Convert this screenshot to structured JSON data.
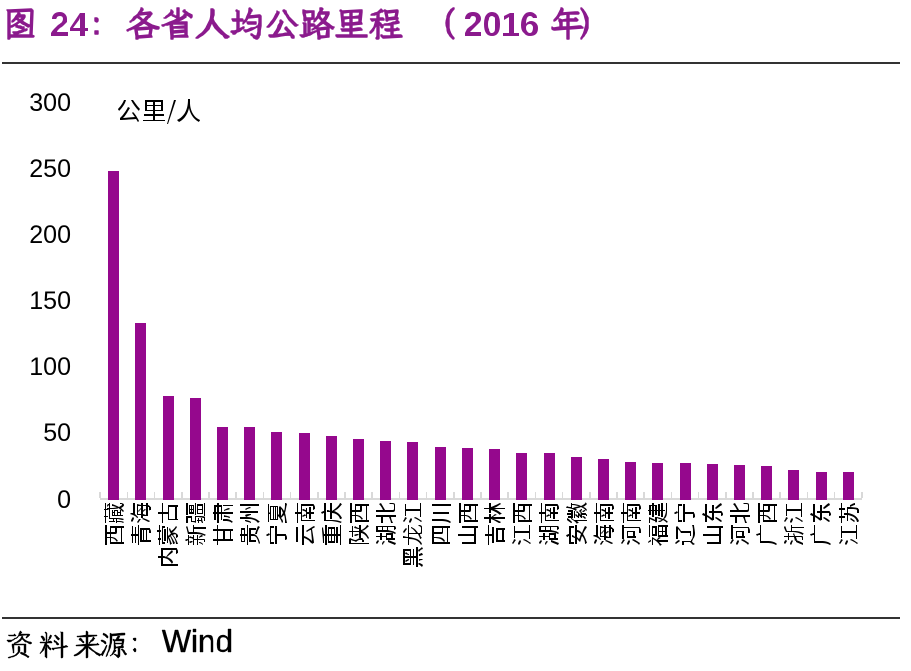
{
  "title": {
    "text": "图 24：各省人均公路里程（2016 年）",
    "figure_label": "图 24",
    "color": "#8B1A8D"
  },
  "chart_data": {
    "type": "bar",
    "title": "各省人均公路里程（2016 年）",
    "unit_label": "公里/人",
    "xlabel": "",
    "ylabel": "公里/人",
    "categories": [
      "西藏",
      "青海",
      "内蒙古",
      "新疆",
      "甘肃",
      "贵州",
      "宁夏",
      "云南",
      "重庆",
      "陕西",
      "湖北",
      "黑龙江",
      "四川",
      "山西",
      "吉林",
      "江西",
      "湖南",
      "安徽",
      "海南",
      "河南",
      "福建",
      "辽宁",
      "山东",
      "河北",
      "广西",
      "浙江",
      "广东",
      "江苏"
    ],
    "values": [
      248,
      133,
      78,
      76.5,
      55,
      54.5,
      51,
      50.5,
      48,
      46,
      44.5,
      43,
      39.5,
      39,
      38,
      35,
      35,
      32,
      30.5,
      28.5,
      27.5,
      27.5,
      26.5,
      26,
      25.5,
      22,
      20.5,
      20.5
    ],
    "ylim": [
      0,
      300
    ],
    "y_ticks": [
      300,
      250,
      200,
      150,
      100,
      50,
      0
    ],
    "grid": false,
    "legend_position": "none",
    "bar_color": "#95088D"
  },
  "y_axis": {
    "tick_labels": [
      "300",
      "250",
      "200",
      "150",
      "100",
      "50",
      "0"
    ]
  },
  "footer": {
    "source_text": "资料来源：Wind",
    "source_label": "资料来源：",
    "source_name": "Wind"
  },
  "colors": {
    "background": "#FFFFFF",
    "title": "#8B1A8D",
    "bar": "#95088D",
    "axis_line": "#D9D9D9",
    "tick": "#D9D9D9",
    "divider": "#333333",
    "text": "#000000"
  }
}
